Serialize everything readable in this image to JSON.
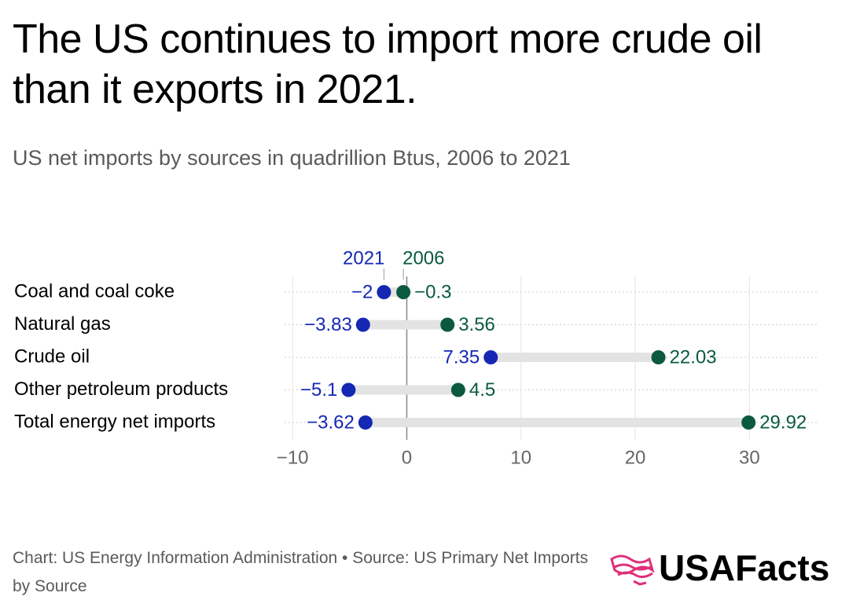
{
  "chart_data": {
    "type": "dot",
    "title": "The US continues to import more crude oil than it exports in 2021.",
    "subtitle": "US net imports by sources in quadrillion Btus, 2006 to 2021",
    "categories": [
      "Coal and coal coke",
      "Natural gas",
      "Crude oil",
      "Other petroleum products",
      "Total energy net imports"
    ],
    "series": [
      {
        "name": "2021",
        "color": "#1428b4",
        "values": [
          -2,
          -3.83,
          7.35,
          -5.1,
          -3.62
        ],
        "value_labels": [
          "−2",
          "−3.83",
          "7.35",
          "−5.1",
          "−3.62"
        ]
      },
      {
        "name": "2006",
        "color": "#0b5a40",
        "values": [
          -0.3,
          3.56,
          22.03,
          4.5,
          29.92
        ],
        "value_labels": [
          "−0.3",
          "3.56",
          "22.03",
          "4.5",
          "29.92"
        ]
      }
    ],
    "xlim": [
      -10.7,
      36.1
    ],
    "xticks": [
      {
        "value": -10,
        "label": "−10"
      },
      0,
      10,
      20,
      30
    ],
    "grid": true,
    "source": "Chart: US Energy Information Administration • Source: US Primary Net Imports by Source",
    "logo": "USAFacts"
  }
}
